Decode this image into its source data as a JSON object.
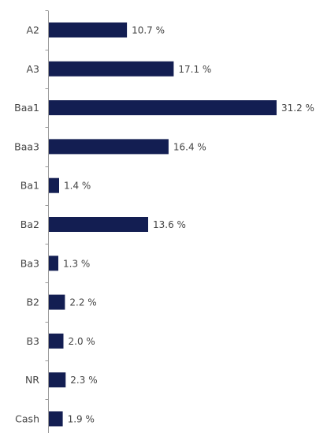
{
  "chart_data": {
    "type": "bar",
    "orientation": "horizontal",
    "title": "",
    "xlabel": "",
    "ylabel": "",
    "categories": [
      "A2",
      "A3",
      "Baa1",
      "Baa3",
      "Ba1",
      "Ba2",
      "Ba3",
      "B2",
      "B3",
      "NR",
      "Cash"
    ],
    "values": [
      10.7,
      17.1,
      31.2,
      16.4,
      1.4,
      13.6,
      1.3,
      2.2,
      2.0,
      2.3,
      1.9
    ],
    "value_labels": [
      "10.7 %",
      "17.1 %",
      "31.2 %",
      "16.4 %",
      "1.4 %",
      "13.6 %",
      "1.3 %",
      "2.2 %",
      "2.0 %",
      "2.3 %",
      "1.9 %"
    ],
    "xlim": [
      0,
      31.2
    ],
    "grid": false,
    "legend": "none",
    "colors": {
      "bar": "#131e52",
      "text": "#444444",
      "axis": "#9a9a9a"
    }
  }
}
